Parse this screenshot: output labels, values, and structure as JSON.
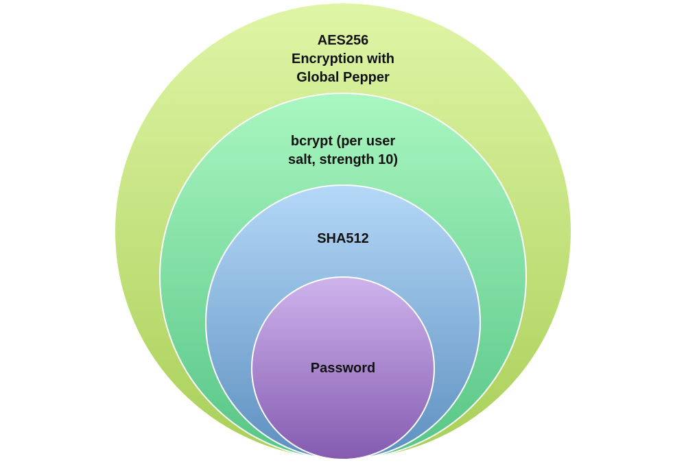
{
  "layers": [
    {
      "id": "aes256",
      "label_lines": [
        "AES256",
        "Encryption with",
        "Global Pepper"
      ],
      "color_top": "#dff5a6",
      "color_bottom": "#a9cf58"
    },
    {
      "id": "bcrypt",
      "label_lines": [
        "bcrypt (per user",
        "salt, strength 10)"
      ],
      "color_top": "#a9f6c0",
      "color_bottom": "#56c585"
    },
    {
      "id": "sha512",
      "label_lines": [
        "SHA512"
      ],
      "color_top": "#b4d8f7",
      "color_bottom": "#5d8fbf"
    },
    {
      "id": "password",
      "label_lines": [
        "Password"
      ],
      "color_top": "#ceb3ec",
      "color_bottom": "#845bb0"
    }
  ]
}
